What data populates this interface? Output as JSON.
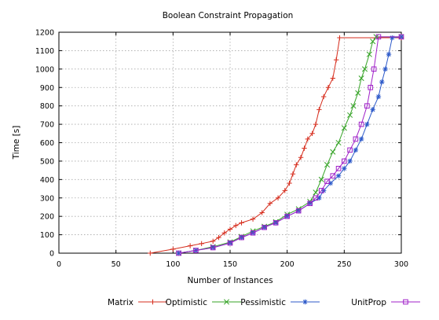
{
  "chart_data": {
    "type": "line",
    "title": "Boolean Constraint Propagation",
    "xlabel": "Number of Instances",
    "ylabel": "Time [s]",
    "xlim": [
      0,
      300
    ],
    "ylim": [
      0,
      1200
    ],
    "xticks": [
      0,
      50,
      100,
      150,
      200,
      250,
      300
    ],
    "yticks": [
      0,
      100,
      200,
      300,
      400,
      500,
      600,
      700,
      800,
      900,
      1000,
      1100,
      1200
    ],
    "grid": true,
    "legend_position": "bottom",
    "series": [
      {
        "name": "Matrix",
        "color": "#d62c1c",
        "marker": "plus",
        "x": [
          80,
          100,
          115,
          125,
          135,
          140,
          145,
          150,
          155,
          160,
          170,
          178,
          185,
          192,
          198,
          202,
          205,
          208,
          212,
          215,
          218,
          222,
          225,
          228,
          232,
          236,
          240,
          243,
          246,
          300
        ],
        "y": [
          0,
          22,
          40,
          52,
          65,
          85,
          110,
          130,
          150,
          165,
          185,
          220,
          270,
          300,
          340,
          380,
          430,
          480,
          520,
          570,
          620,
          650,
          700,
          780,
          850,
          900,
          950,
          1050,
          1170,
          1170
        ]
      },
      {
        "name": "Optimistic",
        "color": "#35a326",
        "marker": "x",
        "x": [
          105,
          120,
          135,
          150,
          160,
          170,
          180,
          190,
          200,
          210,
          220,
          225,
          230,
          235,
          240,
          245,
          250,
          255,
          258,
          262,
          265,
          268,
          272,
          275,
          278,
          300
        ],
        "y": [
          0,
          15,
          35,
          60,
          90,
          120,
          145,
          170,
          210,
          240,
          280,
          330,
          400,
          480,
          550,
          600,
          680,
          750,
          800,
          870,
          950,
          1000,
          1080,
          1150,
          1175,
          1175
        ]
      },
      {
        "name": "Pessimistic",
        "color": "#2c59c9",
        "marker": "asterisk",
        "x": [
          105,
          120,
          135,
          150,
          160,
          170,
          180,
          190,
          200,
          210,
          220,
          228,
          232,
          238,
          245,
          250,
          255,
          260,
          265,
          270,
          275,
          280,
          283,
          286,
          289,
          292,
          300
        ],
        "y": [
          0,
          15,
          30,
          55,
          85,
          110,
          140,
          165,
          200,
          230,
          270,
          300,
          340,
          380,
          420,
          460,
          500,
          560,
          620,
          700,
          780,
          850,
          930,
          1000,
          1080,
          1170,
          1175
        ]
      },
      {
        "name": "UnitProp",
        "color": "#a020c8",
        "marker": "square",
        "x": [
          105,
          120,
          135,
          150,
          160,
          170,
          180,
          190,
          200,
          210,
          220,
          225,
          230,
          235,
          240,
          245,
          250,
          255,
          260,
          265,
          270,
          273,
          276,
          280,
          300
        ],
        "y": [
          0,
          15,
          30,
          55,
          85,
          110,
          140,
          165,
          200,
          230,
          270,
          300,
          340,
          390,
          420,
          460,
          500,
          560,
          620,
          700,
          800,
          900,
          1000,
          1175,
          1175
        ]
      }
    ]
  }
}
